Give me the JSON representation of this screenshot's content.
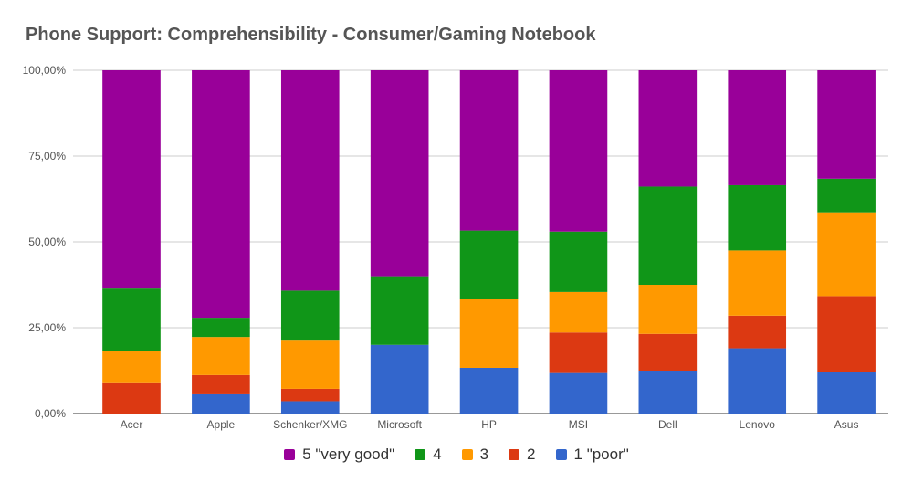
{
  "chart_data": {
    "type": "bar",
    "stacked": true,
    "title": "Phone Support: Comprehensibility - Consumer/Gaming Notebook",
    "xlabel": "",
    "ylabel": "",
    "ylim": [
      0,
      100
    ],
    "y_ticks": [
      "0,00%",
      "25,00%",
      "50,00%",
      "75,00%",
      "100,00%"
    ],
    "grid": true,
    "legend_position": "bottom",
    "categories": [
      "Acer",
      "Apple",
      "Schenker/XMG",
      "Microsoft",
      "HP",
      "MSI",
      "Dell",
      "Lenovo",
      "Asus"
    ],
    "series": [
      {
        "name": "1 \"poor\"",
        "color": "#3366cc",
        "values": [
          0,
          5.6,
          3.6,
          20.0,
          13.3,
          11.8,
          12.5,
          19.0,
          12.2
        ]
      },
      {
        "name": "2",
        "color": "#dc3912",
        "values": [
          9.1,
          5.6,
          3.6,
          0,
          0,
          11.8,
          10.7,
          9.5,
          22.0
        ]
      },
      {
        "name": "3",
        "color": "#ff9900",
        "values": [
          9.1,
          11.1,
          14.3,
          0,
          20.0,
          11.8,
          14.3,
          19.0,
          24.4
        ]
      },
      {
        "name": "4",
        "color": "#109618",
        "values": [
          18.2,
          5.6,
          14.3,
          20.0,
          20.0,
          17.6,
          28.6,
          19.0,
          9.8
        ]
      },
      {
        "name": "5 \"very good\"",
        "color": "#990099",
        "values": [
          63.6,
          72.1,
          64.2,
          60.0,
          46.7,
          47.0,
          33.9,
          33.5,
          31.6
        ]
      }
    ]
  }
}
